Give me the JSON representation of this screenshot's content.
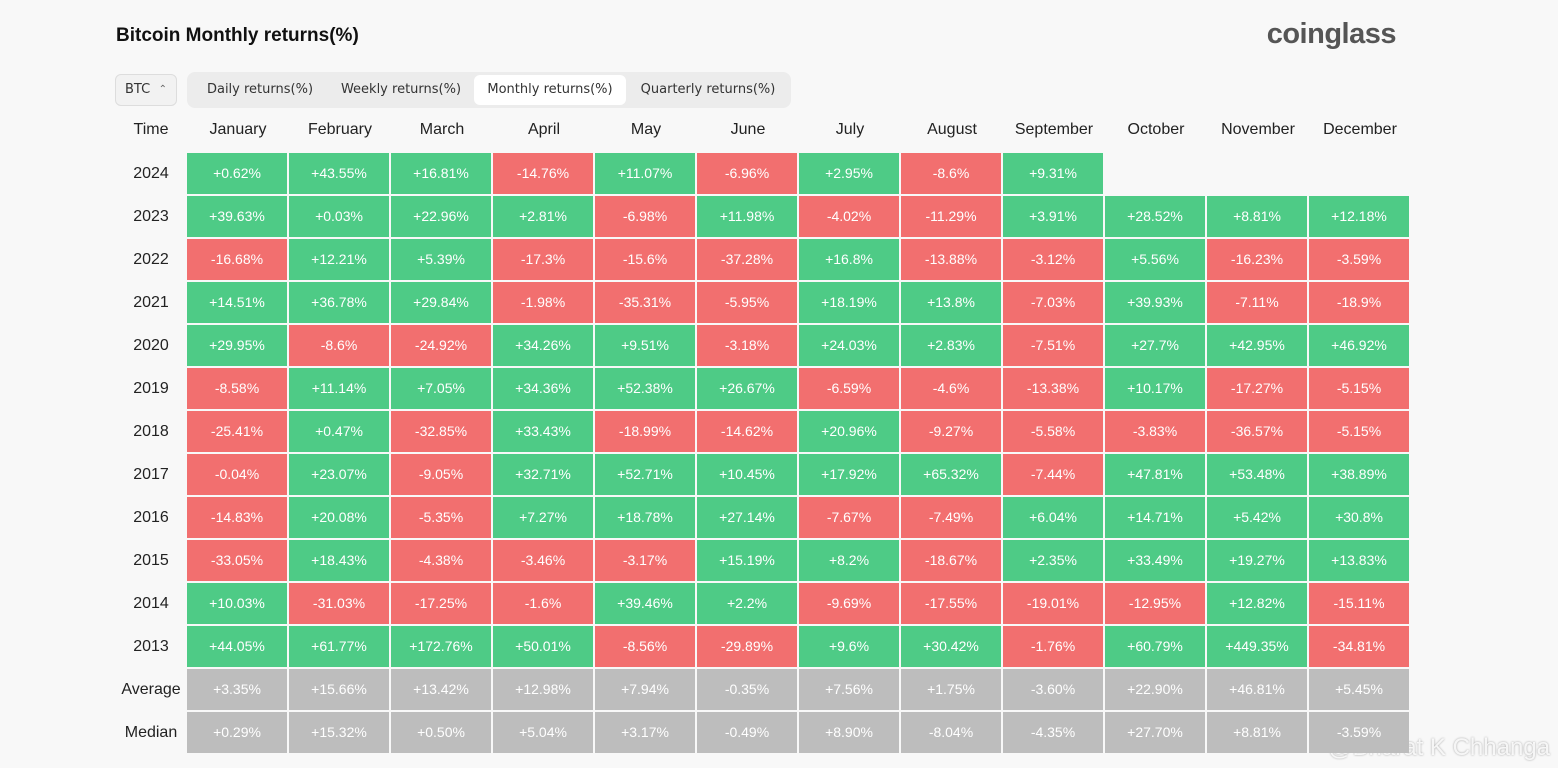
{
  "header": {
    "title": "Bitcoin Monthly returns(%)",
    "logo": "coinglass"
  },
  "toolbar": {
    "asset": "BTC",
    "tabs": [
      "Daily returns(%)",
      "Weekly returns(%)",
      "Monthly returns(%)",
      "Quarterly returns(%)"
    ],
    "active_tab": 2
  },
  "table": {
    "columns": [
      "Time",
      "January",
      "February",
      "March",
      "April",
      "May",
      "June",
      "July",
      "August",
      "September",
      "October",
      "November",
      "December"
    ],
    "rows": [
      [
        "2024",
        "+0.62%",
        "+43.55%",
        "+16.81%",
        "-14.76%",
        "+11.07%",
        "-6.96%",
        "+2.95%",
        "-8.6%",
        "+9.31%"
      ],
      [
        "2023",
        "+39.63%",
        "+0.03%",
        "+22.96%",
        "+2.81%",
        "-6.98%",
        "+11.98%",
        "-4.02%",
        "-11.29%",
        "+3.91%",
        "+28.52%",
        "+8.81%",
        "+12.18%"
      ],
      [
        "2022",
        "-16.68%",
        "+12.21%",
        "+5.39%",
        "-17.3%",
        "-15.6%",
        "-37.28%",
        "+16.8%",
        "-13.88%",
        "-3.12%",
        "+5.56%",
        "-16.23%",
        "-3.59%"
      ],
      [
        "2021",
        "+14.51%",
        "+36.78%",
        "+29.84%",
        "-1.98%",
        "-35.31%",
        "-5.95%",
        "+18.19%",
        "+13.8%",
        "-7.03%",
        "+39.93%",
        "-7.11%",
        "-18.9%"
      ],
      [
        "2020",
        "+29.95%",
        "-8.6%",
        "-24.92%",
        "+34.26%",
        "+9.51%",
        "-3.18%",
        "+24.03%",
        "+2.83%",
        "-7.51%",
        "+27.7%",
        "+42.95%",
        "+46.92%"
      ],
      [
        "2019",
        "-8.58%",
        "+11.14%",
        "+7.05%",
        "+34.36%",
        "+52.38%",
        "+26.67%",
        "-6.59%",
        "-4.6%",
        "-13.38%",
        "+10.17%",
        "-17.27%",
        "-5.15%"
      ],
      [
        "2018",
        "-25.41%",
        "+0.47%",
        "-32.85%",
        "+33.43%",
        "-18.99%",
        "-14.62%",
        "+20.96%",
        "-9.27%",
        "-5.58%",
        "-3.83%",
        "-36.57%",
        "-5.15%"
      ],
      [
        "2017",
        "-0.04%",
        "+23.07%",
        "-9.05%",
        "+32.71%",
        "+52.71%",
        "+10.45%",
        "+17.92%",
        "+65.32%",
        "-7.44%",
        "+47.81%",
        "+53.48%",
        "+38.89%"
      ],
      [
        "2016",
        "-14.83%",
        "+20.08%",
        "-5.35%",
        "+7.27%",
        "+18.78%",
        "+27.14%",
        "-7.67%",
        "-7.49%",
        "+6.04%",
        "+14.71%",
        "+5.42%",
        "+30.8%"
      ],
      [
        "2015",
        "-33.05%",
        "+18.43%",
        "-4.38%",
        "-3.46%",
        "-3.17%",
        "+15.19%",
        "+8.2%",
        "-18.67%",
        "+2.35%",
        "+33.49%",
        "+19.27%",
        "+13.83%"
      ],
      [
        "2014",
        "+10.03%",
        "-31.03%",
        "-17.25%",
        "-1.6%",
        "+39.46%",
        "+2.2%",
        "-9.69%",
        "-17.55%",
        "-19.01%",
        "-12.95%",
        "+12.82%",
        "-15.11%"
      ],
      [
        "2013",
        "+44.05%",
        "+61.77%",
        "+172.76%",
        "+50.01%",
        "-8.56%",
        "-29.89%",
        "+9.6%",
        "+30.42%",
        "-1.76%",
        "+60.79%",
        "+449.35%",
        "-34.81%"
      ]
    ],
    "summary": [
      [
        "Average",
        "+3.35%",
        "+15.66%",
        "+13.42%",
        "+12.98%",
        "+7.94%",
        "-0.35%",
        "+7.56%",
        "+1.75%",
        "-3.60%",
        "+22.90%",
        "+46.81%",
        "+5.45%"
      ],
      [
        "Median",
        "+0.29%",
        "+15.32%",
        "+0.50%",
        "+5.04%",
        "+3.17%",
        "-0.49%",
        "+8.90%",
        "-8.04%",
        "-4.35%",
        "+27.70%",
        "+8.81%",
        "-3.59%"
      ]
    ]
  },
  "watermark": "@Bharat K Chhanga"
}
